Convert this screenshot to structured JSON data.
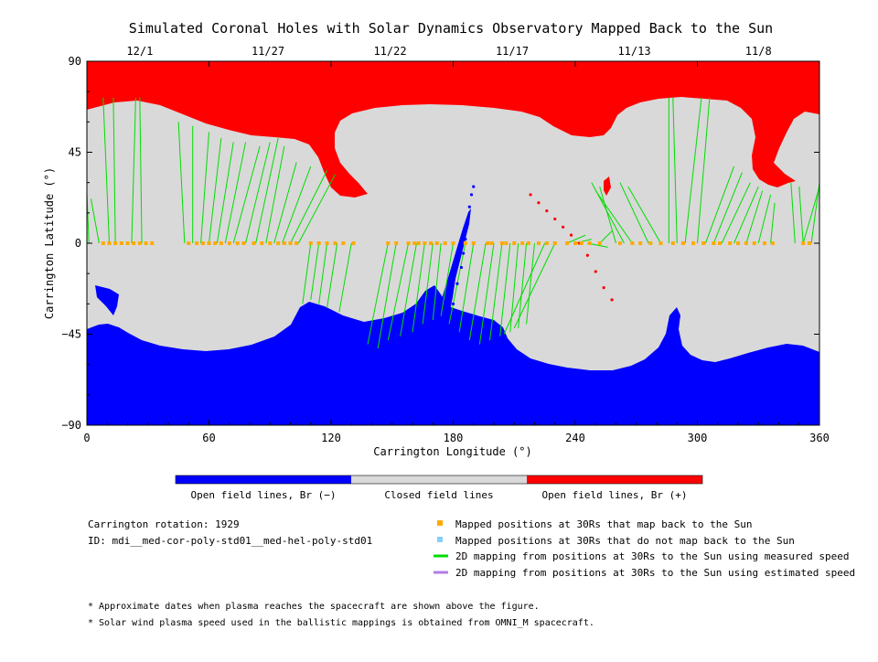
{
  "chart_data": {
    "type": "scatter",
    "title": "Simulated Coronal Holes with Solar Dynamics Observatory Mapped Back to the Sun",
    "xlabel": "Carrington Longitude (°)",
    "ylabel": "Carrington Latitude (°)",
    "xlim": [
      0,
      360
    ],
    "ylim": [
      -90,
      90
    ],
    "x_ticks": [
      "0",
      "60",
      "120",
      "180",
      "240",
      "300",
      "360"
    ],
    "y_ticks": [
      "90",
      "45",
      "0",
      "-45",
      "-90"
    ],
    "top_axis": {
      "labels": [
        "12/1",
        "11/27",
        "11/22",
        "11/17",
        "11/13",
        "11/8"
      ],
      "longitudes": [
        26,
        89,
        149,
        209,
        269,
        330
      ]
    },
    "colorbar": {
      "colors": [
        "#0000ff",
        "#d9d9d9",
        "#ff0000"
      ],
      "labels": [
        "Open field lines, Br (−)",
        "Closed field lines",
        "Open field lines, Br (+)"
      ]
    },
    "legend": [
      {
        "label": "Mapped positions at 30Rs that map back to the Sun",
        "color": "#ffaa00",
        "kind": "square"
      },
      {
        "label": "Mapped positions at 30Rs that do not map back to the Sun",
        "color": "#87cefa",
        "kind": "square"
      },
      {
        "label": "2D mapping from positions at 30Rs to the Sun using measured speed",
        "color": "#00dd00",
        "kind": "line"
      },
      {
        "label": "2D mapping from positions at 30Rs to the Sun using estimated speed",
        "color": "#b07ee0",
        "kind": "line"
      }
    ],
    "info": [
      "Carrington rotation: 1929",
      "ID: mdi__med-cor-poly-std01__med-hel-poly-std01"
    ],
    "notes": [
      "* Approximate dates when plasma reaches the spacecraft are shown above the figure.",
      "* Solar wind plasma speed used in the ballistic mappings is obtained from OMNI_M spacecraft."
    ],
    "mapped_positions_lon": [
      8,
      11,
      14,
      17,
      20,
      23,
      26,
      29,
      32,
      50,
      54,
      57,
      60,
      63,
      66,
      70,
      74,
      77,
      82,
      86,
      90,
      94,
      97,
      100,
      103,
      110,
      114,
      118,
      122,
      126,
      131,
      148,
      152,
      158,
      161,
      163,
      166,
      169,
      172,
      176,
      180,
      186,
      190,
      197,
      199,
      204,
      206,
      210,
      214,
      217,
      222,
      226,
      230,
      236,
      240,
      243,
      247,
      252,
      262,
      268,
      272,
      277,
      282,
      288,
      293,
      298,
      303,
      308,
      311,
      316,
      320,
      324,
      328,
      333,
      337,
      352,
      355
    ],
    "mapped_positions_lat": [
      0,
      0,
      0,
      0,
      0,
      0,
      0,
      0,
      0,
      0,
      0,
      0,
      0,
      0,
      0,
      0,
      0,
      0,
      0,
      0,
      0,
      0,
      0,
      0,
      0,
      0,
      0,
      0,
      0,
      0,
      0,
      0,
      0,
      0,
      0,
      0,
      0,
      0,
      0,
      0,
      0,
      0,
      0,
      0,
      0,
      0,
      0,
      0,
      0,
      0,
      0,
      0,
      0,
      0,
      0,
      0,
      0,
      0,
      0,
      0,
      0,
      0,
      0,
      0,
      0,
      0,
      0,
      0,
      0,
      0,
      0,
      0,
      0,
      0,
      0,
      0,
      0
    ],
    "mapping_lines": [
      [
        [
          1,
          0
        ],
        [
          0,
          25
        ]
      ],
      [
        [
          6,
          0
        ],
        [
          2,
          22
        ]
      ],
      [
        [
          11,
          0
        ],
        [
          8,
          72
        ]
      ],
      [
        [
          14,
          0
        ],
        [
          13,
          72
        ]
      ],
      [
        [
          22,
          0
        ],
        [
          24,
          72
        ]
      ],
      [
        [
          27,
          0
        ],
        [
          26,
          72
        ]
      ],
      [
        [
          48,
          0
        ],
        [
          45,
          60
        ]
      ],
      [
        [
          52,
          0
        ],
        [
          52,
          58
        ]
      ],
      [
        [
          56,
          0
        ],
        [
          60,
          55
        ]
      ],
      [
        [
          60,
          0
        ],
        [
          66,
          52
        ]
      ],
      [
        [
          64,
          0
        ],
        [
          72,
          50
        ]
      ],
      [
        [
          68,
          0
        ],
        [
          78,
          50
        ]
      ],
      [
        [
          72,
          0
        ],
        [
          85,
          48
        ]
      ],
      [
        [
          78,
          0
        ],
        [
          90,
          50
        ]
      ],
      [
        [
          83,
          0
        ],
        [
          94,
          52
        ]
      ],
      [
        [
          88,
          0
        ],
        [
          97,
          48
        ]
      ],
      [
        [
          92,
          0
        ],
        [
          103,
          40
        ]
      ],
      [
        [
          96,
          0
        ],
        [
          110,
          38
        ]
      ],
      [
        [
          100,
          0
        ],
        [
          118,
          36
        ]
      ],
      [
        [
          104,
          0
        ],
        [
          122,
          34
        ]
      ],
      [
        [
          110,
          0
        ],
        [
          106,
          -30
        ]
      ],
      [
        [
          114,
          0
        ],
        [
          110,
          -28
        ]
      ],
      [
        [
          118,
          0
        ],
        [
          114,
          -30
        ]
      ],
      [
        [
          123,
          0
        ],
        [
          118,
          -32
        ]
      ],
      [
        [
          130,
          0
        ],
        [
          124,
          -34
        ]
      ],
      [
        [
          148,
          0
        ],
        [
          138,
          -50
        ]
      ],
      [
        [
          152,
          0
        ],
        [
          143,
          -52
        ]
      ],
      [
        [
          158,
          0
        ],
        [
          148,
          -48
        ]
      ],
      [
        [
          162,
          0
        ],
        [
          154,
          -46
        ]
      ],
      [
        [
          166,
          0
        ],
        [
          160,
          -44
        ]
      ],
      [
        [
          170,
          0
        ],
        [
          165,
          -40
        ]
      ],
      [
        [
          174,
          0
        ],
        [
          170,
          -38
        ]
      ],
      [
        [
          180,
          0
        ],
        [
          174,
          -36
        ]
      ],
      [
        [
          186,
          0
        ],
        [
          178,
          -40
        ]
      ],
      [
        [
          190,
          0
        ],
        [
          183,
          -44
        ]
      ],
      [
        [
          196,
          0
        ],
        [
          188,
          -48
        ]
      ],
      [
        [
          200,
          0
        ],
        [
          193,
          -50
        ]
      ],
      [
        [
          204,
          0
        ],
        [
          198,
          -48
        ]
      ],
      [
        [
          208,
          0
        ],
        [
          203,
          -46
        ]
      ],
      [
        [
          212,
          0
        ],
        [
          208,
          -44
        ]
      ],
      [
        [
          216,
          0
        ],
        [
          212,
          -42
        ]
      ],
      [
        [
          220,
          0
        ],
        [
          216,
          -40
        ]
      ],
      [
        [
          225,
          0
        ],
        [
          205,
          -45
        ]
      ],
      [
        [
          230,
          0
        ],
        [
          210,
          -42
        ]
      ],
      [
        [
          236,
          0
        ],
        [
          245,
          4
        ]
      ],
      [
        [
          240,
          0
        ],
        [
          248,
          2
        ]
      ],
      [
        [
          246,
          0
        ],
        [
          256,
          -2
        ]
      ],
      [
        [
          252,
          0
        ],
        [
          258,
          6
        ]
      ],
      [
        [
          260,
          0
        ],
        [
          252,
          28
        ]
      ],
      [
        [
          264,
          0
        ],
        [
          248,
          30
        ]
      ],
      [
        [
          268,
          0
        ],
        [
          250,
          26
        ]
      ],
      [
        [
          276,
          0
        ],
        [
          262,
          30
        ]
      ],
      [
        [
          282,
          0
        ],
        [
          266,
          28
        ]
      ],
      [
        [
          286,
          0
        ],
        [
          286,
          72
        ]
      ],
      [
        [
          290,
          0
        ],
        [
          288,
          72
        ]
      ],
      [
        [
          294,
          0
        ],
        [
          302,
          72
        ]
      ],
      [
        [
          300,
          0
        ],
        [
          306,
          72
        ]
      ],
      [
        [
          304,
          0
        ],
        [
          318,
          38
        ]
      ],
      [
        [
          308,
          0
        ],
        [
          322,
          35
        ]
      ],
      [
        [
          312,
          0
        ],
        [
          326,
          30
        ]
      ],
      [
        [
          318,
          0
        ],
        [
          330,
          28
        ]
      ],
      [
        [
          324,
          0
        ],
        [
          332,
          26
        ]
      ],
      [
        [
          330,
          0
        ],
        [
          336,
          24
        ]
      ],
      [
        [
          336,
          0
        ],
        [
          338,
          20
        ]
      ],
      [
        [
          348,
          0
        ],
        [
          346,
          30
        ]
      ],
      [
        [
          352,
          0
        ],
        [
          350,
          28
        ]
      ],
      [
        [
          356,
          0
        ],
        [
          360,
          30
        ]
      ],
      [
        [
          352,
          0
        ],
        [
          360,
          28
        ]
      ]
    ],
    "negative_coronal_hole_points": [
      [
        180,
        -30
      ],
      [
        182,
        -20
      ],
      [
        184,
        -12
      ],
      [
        185,
        -5
      ],
      [
        186,
        2
      ],
      [
        187,
        10
      ],
      [
        188,
        18
      ],
      [
        189,
        24
      ],
      [
        190,
        28
      ]
    ],
    "positive_coronal_hole_points": [
      [
        218,
        24
      ],
      [
        222,
        20
      ],
      [
        226,
        16
      ],
      [
        230,
        12
      ],
      [
        234,
        8
      ],
      [
        238,
        4
      ],
      [
        242,
        0
      ],
      [
        246,
        -6
      ],
      [
        250,
        -14
      ],
      [
        254,
        -22
      ],
      [
        258,
        -28
      ]
    ]
  }
}
